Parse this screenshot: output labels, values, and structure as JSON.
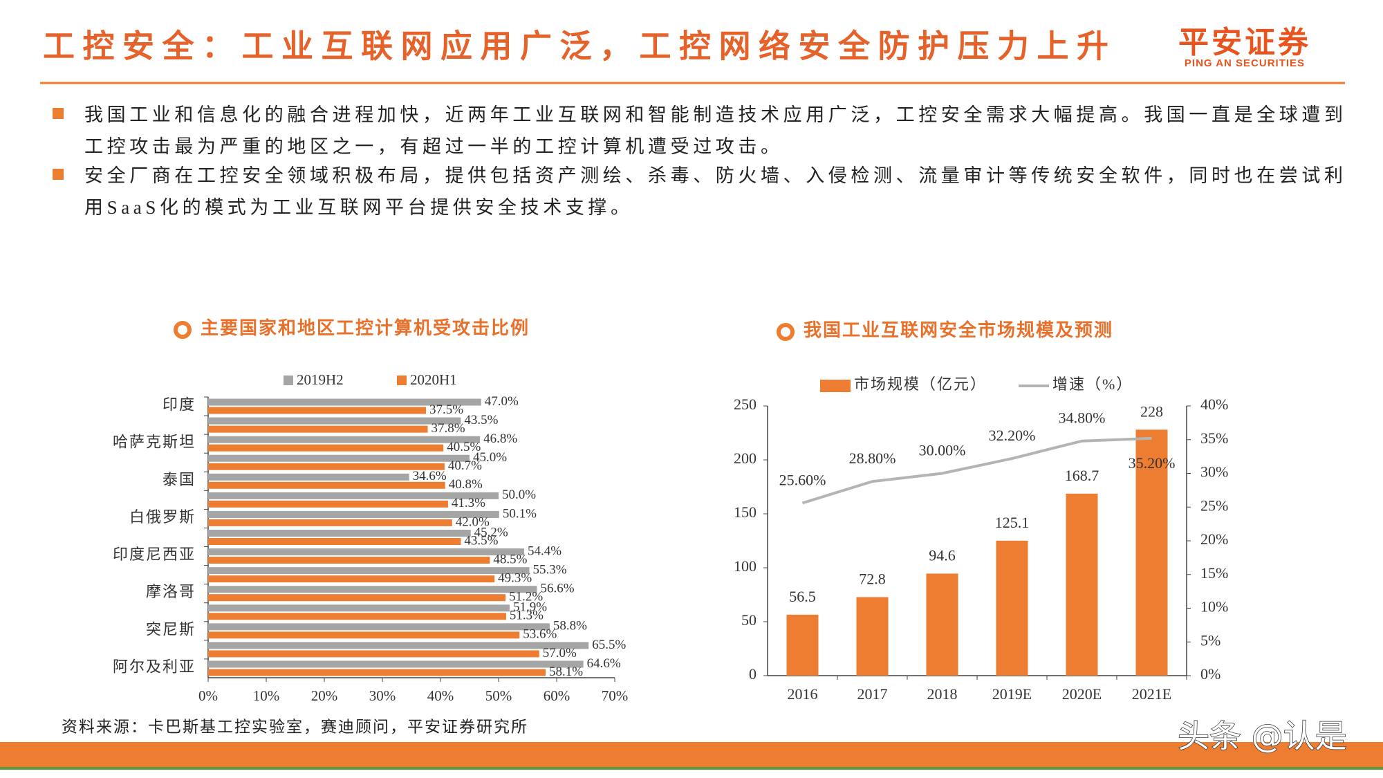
{
  "header": {
    "title": "工控安全：工业互联网应用广泛，工控网络安全防护压力上升",
    "logo": "平安证券",
    "logo_sub": "PING AN SECURITIES"
  },
  "bullets": [
    "我国工业和信息化的融合进程加快，近两年工业互联网和智能制造技术应用广泛，工控安全需求大幅提高。我国一直是全球遭到工控攻击最为严重的地区之一，有超过一半的工控计算机遭受过攻击。",
    "安全厂商在工控安全领域积极布局，提供包括资产测绘、杀毒、防火墙、入侵检测、流量审计等传统安全软件，同时也在尝试利用SaaS化的模式为工业互联网平台提供安全技术支撑。"
  ],
  "source": "资料来源：卡巴斯基工控实验室，赛迪顾问，平安证券研究所",
  "watermark": "头条 @认是",
  "chart_data": [
    {
      "type": "barh",
      "title": "主要国家和地区工控计算机受攻击比例",
      "categories": [
        "印度",
        null,
        "哈萨克斯坦",
        null,
        "泰国",
        null,
        "白俄罗斯",
        null,
        "印度尼西亚",
        null,
        "摩洛哥",
        null,
        "突尼斯",
        null,
        "阿尔及利亚"
      ],
      "series": [
        {
          "name": "2019H2",
          "color": "#a5a5a5",
          "values": [
            47.0,
            43.5,
            46.8,
            45.0,
            34.6,
            50.0,
            50.1,
            45.2,
            54.4,
            55.3,
            56.6,
            51.9,
            58.8,
            65.5,
            64.6
          ],
          "value_labels": [
            "47.0%",
            "43.5%",
            "46.8%",
            "45.0%",
            "34.6%",
            "50.0%",
            "50.1%",
            "45.2%",
            "54.4%",
            "55.3%",
            "56.6%",
            "51.9%",
            "58.8%",
            "65.5%",
            "64.6%"
          ]
        },
        {
          "name": "2020H1",
          "color": "#ed7d31",
          "values": [
            37.5,
            37.8,
            40.5,
            40.7,
            40.8,
            41.3,
            42.0,
            43.5,
            48.5,
            49.3,
            51.2,
            51.3,
            53.6,
            57.0,
            58.1
          ],
          "value_labels": [
            "37.5%",
            "37.8%",
            "40.5%",
            "40.7%",
            "40.8%",
            "41.3%",
            "42.0%",
            "43.5%",
            "48.5%",
            "49.3%",
            "51.2%",
            "51.3%",
            "53.6%",
            "57.0%",
            "58.1%"
          ]
        }
      ],
      "xlim": [
        0,
        70
      ],
      "xticks": [
        {
          "value": 0,
          "label": "0%"
        },
        {
          "value": 10,
          "label": "10%"
        },
        {
          "value": 20,
          "label": "20%"
        },
        {
          "value": 30,
          "label": "30%"
        },
        {
          "value": 40,
          "label": "40%"
        },
        {
          "value": 50,
          "label": "50%"
        },
        {
          "value": 60,
          "label": "60%"
        },
        {
          "value": 70,
          "label": "70%"
        }
      ]
    },
    {
      "type": "bar",
      "title": "我国工业互联网安全市场规模及预测",
      "categories": [
        "2016",
        "2017",
        "2018",
        "2019E",
        "2020E",
        "2021E"
      ],
      "series": [
        {
          "name": "市场规模（亿元）",
          "color": "#ed7d31",
          "values": [
            56.5,
            72.8,
            94.6,
            125.1,
            168.7,
            228
          ]
        },
        {
          "name": "增速（%）",
          "color": "#b4b4b4",
          "axis": "y2",
          "values": [
            25.6,
            28.8,
            30.0,
            32.2,
            34.8,
            35.2
          ],
          "value_labels": [
            "25.60%",
            "28.80%",
            "30.00%",
            "32.20%",
            "34.80%",
            "35.20%"
          ]
        }
      ],
      "ylim": [
        0,
        250
      ],
      "yticks": [
        0,
        50,
        100,
        150,
        200,
        250
      ],
      "y2lim": [
        0,
        40
      ],
      "y2ticks": [
        {
          "value": 0,
          "label": "0%"
        },
        {
          "value": 5,
          "label": "5%"
        },
        {
          "value": 10,
          "label": "10%"
        },
        {
          "value": 15,
          "label": "15%"
        },
        {
          "value": 20,
          "label": "20%"
        },
        {
          "value": 25,
          "label": "25%"
        },
        {
          "value": 30,
          "label": "30%"
        },
        {
          "value": 35,
          "label": "35%"
        },
        {
          "value": 40,
          "label": "40%"
        }
      ]
    }
  ]
}
